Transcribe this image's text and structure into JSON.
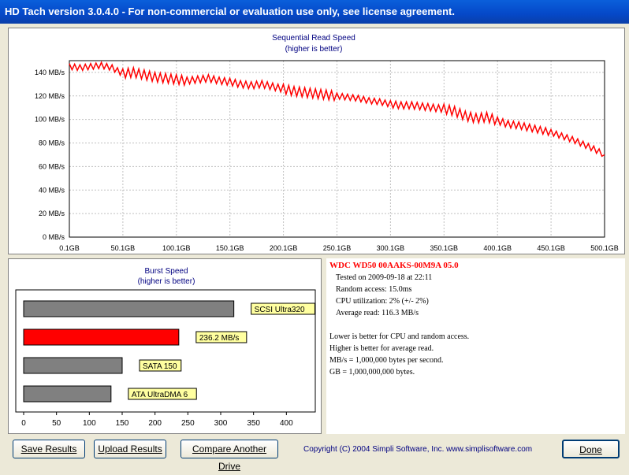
{
  "window": {
    "title": "HD Tach version 3.0.4.0  - For non-commercial or evaluation use only, see license agreement."
  },
  "seq_chart": {
    "title": "Sequential Read Speed",
    "subtitle": "(higher is better)",
    "y_ticks": [
      "0 MB/s",
      "20 MB/s",
      "40 MB/s",
      "60 MB/s",
      "80 MB/s",
      "100 MB/s",
      "120 MB/s",
      "140 MB/s"
    ],
    "x_ticks": [
      "0.1GB",
      "50.1GB",
      "100.1GB",
      "150.1GB",
      "200.1GB",
      "250.1GB",
      "300.1GB",
      "350.1GB",
      "400.1GB",
      "450.1GB",
      "500.1GB"
    ]
  },
  "chart_data": [
    {
      "type": "line",
      "title": "Sequential Read Speed",
      "subtitle": "(higher is better)",
      "xlabel": "",
      "ylabel": "",
      "xlim": [
        0.1,
        500.1
      ],
      "ylim": [
        0,
        150
      ],
      "grid": true,
      "series": [
        {
          "color": "#ff0000",
          "x": [
            0.1,
            10,
            20,
            30,
            40,
            50,
            60,
            70,
            80,
            90,
            100,
            110,
            120,
            130,
            140,
            150,
            160,
            170,
            180,
            190,
            200,
            210,
            220,
            230,
            240,
            250,
            260,
            270,
            280,
            290,
            300,
            310,
            320,
            330,
            340,
            350,
            360,
            370,
            380,
            390,
            400,
            410,
            420,
            430,
            440,
            450,
            460,
            470,
            480,
            490,
            500.1
          ],
          "y": [
            145,
            144,
            145,
            146,
            144,
            139,
            140,
            138,
            136,
            135,
            134,
            133,
            134,
            135,
            133,
            132,
            130,
            129,
            130,
            128,
            126,
            124,
            123,
            122,
            121,
            120,
            119,
            118,
            116,
            115,
            113,
            112,
            112,
            111,
            110,
            109,
            107,
            103,
            101,
            102,
            99,
            96,
            95,
            93,
            91,
            89,
            86,
            83,
            79,
            75,
            70
          ],
          "amplitude": [
            5,
            5,
            5,
            5,
            5,
            8,
            8,
            8,
            8,
            8,
            8,
            6,
            6,
            6,
            6,
            6,
            6,
            6,
            6,
            6,
            8,
            8,
            8,
            8,
            8,
            5,
            5,
            5,
            5,
            5,
            6,
            6,
            6,
            6,
            6,
            8,
            8,
            8,
            8,
            8,
            6,
            6,
            6,
            6,
            6,
            5,
            5,
            5,
            5,
            5,
            4
          ]
        }
      ]
    },
    {
      "type": "bar",
      "title": "Burst Speed",
      "subtitle": "(higher is better)",
      "orientation": "horizontal",
      "categories": [
        "SCSI Ultra320",
        "236.2 MB/s",
        "SATA 150",
        "ATA UltraDMA 6"
      ],
      "values": [
        320,
        236.2,
        150,
        133
      ],
      "colors": [
        "#808080",
        "#ff0000",
        "#808080",
        "#808080"
      ],
      "xlim": [
        0,
        450
      ],
      "x_ticks": [
        "0",
        "50",
        "100",
        "150",
        "200",
        "250",
        "300",
        "350",
        "400"
      ]
    }
  ],
  "info": {
    "drive": "WDC  WD50 00AAKS-00M9A 05.0",
    "tested_on": "Tested on 2009-09-18 at 22:11",
    "random_access": "Random access: 15.0ms",
    "cpu": "CPU utilization: 2% (+/- 2%)",
    "avg_read": "Average read: 116.3 MB/s",
    "note1": "Lower is better for CPU and random access.",
    "note2": "Higher is better for average read.",
    "note3": "MB/s = 1,000,000 bytes per second.",
    "note4": "GB = 1,000,000,000 bytes."
  },
  "buttons": {
    "save": "Save Results",
    "upload": "Upload Results",
    "compare": "Compare Another Drive",
    "done": "Done"
  },
  "footer": {
    "copyright": "Copyright (C) 2004 Simpli Software, Inc. www.simplisoftware.com"
  }
}
